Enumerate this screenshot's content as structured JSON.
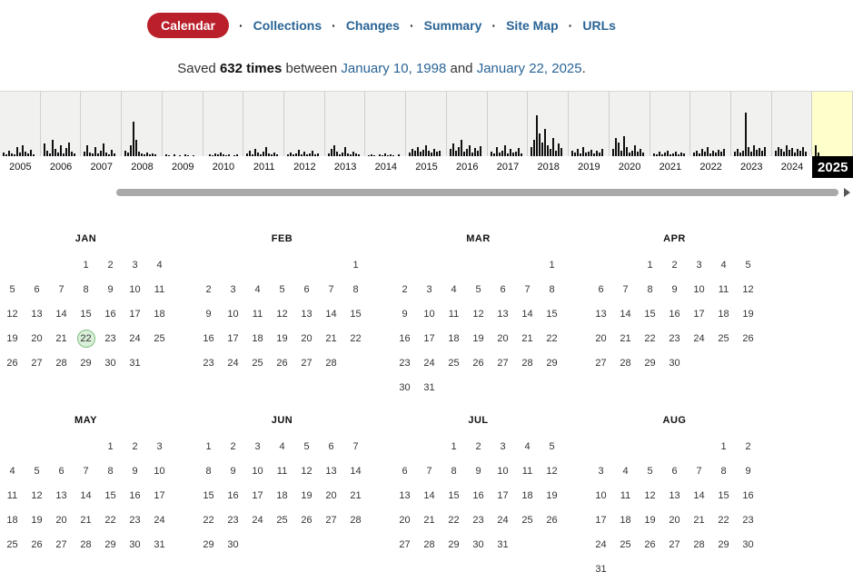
{
  "nav": {
    "separator": "·",
    "items": [
      {
        "label": "Calendar",
        "active": true
      },
      {
        "label": "Collections"
      },
      {
        "label": "Changes"
      },
      {
        "label": "Summary"
      },
      {
        "label": "Site Map"
      },
      {
        "label": "URLs"
      }
    ]
  },
  "summary": {
    "prefix": "Saved",
    "count": "632 times",
    "between": "between",
    "start_date": "January 10, 1998",
    "and": "and",
    "end_date": "January 22, 2025",
    "period": "."
  },
  "timeline": {
    "selected_year": "2025",
    "columns": [
      {
        "year": "2005",
        "bars": [
          4,
          2,
          6,
          3,
          2,
          10,
          4,
          12,
          5,
          3,
          7,
          2
        ]
      },
      {
        "year": "2006",
        "bars": [
          14,
          6,
          3,
          18,
          8,
          4,
          12,
          3,
          9,
          15,
          5,
          3
        ]
      },
      {
        "year": "2007",
        "bars": [
          5,
          12,
          4,
          3,
          10,
          3,
          6,
          14,
          4,
          2,
          7,
          3
        ]
      },
      {
        "year": "2008",
        "bars": [
          6,
          4,
          12,
          38,
          18,
          5,
          3,
          2,
          4,
          2,
          3,
          2
        ]
      },
      {
        "year": "2009",
        "bars": [
          2,
          1,
          0,
          2,
          0,
          1,
          0,
          2,
          1,
          0,
          1,
          0
        ]
      },
      {
        "year": "2010",
        "bars": [
          0,
          2,
          1,
          3,
          2,
          4,
          2,
          1,
          2,
          0,
          1,
          2
        ]
      },
      {
        "year": "2011",
        "bars": [
          3,
          6,
          2,
          8,
          4,
          2,
          5,
          10,
          3,
          2,
          4,
          2
        ]
      },
      {
        "year": "2012",
        "bars": [
          2,
          4,
          2,
          3,
          7,
          2,
          5,
          2,
          3,
          6,
          2,
          3
        ]
      },
      {
        "year": "2013",
        "bars": [
          3,
          8,
          12,
          5,
          2,
          4,
          10,
          3,
          2,
          5,
          3,
          2
        ]
      },
      {
        "year": "2014",
        "bars": [
          1,
          2,
          1,
          0,
          2,
          1,
          3,
          1,
          2,
          1,
          0,
          2
        ]
      },
      {
        "year": "2015",
        "bars": [
          4,
          8,
          6,
          10,
          5,
          7,
          12,
          6,
          4,
          8,
          5,
          6
        ]
      },
      {
        "year": "2016",
        "bars": [
          8,
          14,
          6,
          10,
          18,
          5,
          8,
          12,
          4,
          9,
          6,
          11
        ]
      },
      {
        "year": "2017",
        "bars": [
          5,
          3,
          10,
          4,
          6,
          12,
          3,
          8,
          4,
          5,
          9,
          3
        ]
      },
      {
        "year": "2018",
        "bars": [
          10,
          18,
          45,
          25,
          15,
          30,
          12,
          8,
          20,
          6,
          14,
          9
        ]
      },
      {
        "year": "2019",
        "bars": [
          6,
          4,
          8,
          3,
          10,
          4,
          5,
          7,
          3,
          6,
          4,
          8
        ]
      },
      {
        "year": "2020",
        "bars": [
          8,
          20,
          15,
          6,
          22,
          10,
          4,
          6,
          12,
          5,
          8,
          4
        ]
      },
      {
        "year": "2021",
        "bars": [
          3,
          2,
          5,
          2,
          4,
          6,
          2,
          3,
          5,
          2,
          4,
          3
        ]
      },
      {
        "year": "2022",
        "bars": [
          4,
          6,
          3,
          8,
          5,
          10,
          3,
          6,
          4,
          7,
          5,
          8
        ]
      },
      {
        "year": "2023",
        "bars": [
          5,
          8,
          4,
          6,
          48,
          10,
          5,
          12,
          7,
          9,
          6,
          10
        ]
      },
      {
        "year": "2024",
        "bars": [
          6,
          10,
          8,
          5,
          12,
          7,
          9,
          4,
          8,
          6,
          10,
          5
        ]
      },
      {
        "year": "2025",
        "selected": true,
        "bars": [
          12,
          4
        ]
      }
    ]
  },
  "calendar": {
    "highlight": {
      "month": "JAN",
      "day": "22"
    },
    "months": [
      {
        "name": "JAN",
        "weeks": [
          [
            "",
            "",
            "",
            "1",
            "2",
            "3",
            "4"
          ],
          [
            "5",
            "6",
            "7",
            "8",
            "9",
            "10",
            "11"
          ],
          [
            "12",
            "13",
            "14",
            "15",
            "16",
            "17",
            "18"
          ],
          [
            "19",
            "20",
            "21",
            "22",
            "23",
            "24",
            "25"
          ],
          [
            "26",
            "27",
            "28",
            "29",
            "30",
            "31",
            ""
          ]
        ]
      },
      {
        "name": "FEB",
        "weeks": [
          [
            "",
            "",
            "",
            "",
            "",
            "",
            "1"
          ],
          [
            "2",
            "3",
            "4",
            "5",
            "6",
            "7",
            "8"
          ],
          [
            "9",
            "10",
            "11",
            "12",
            "13",
            "14",
            "15"
          ],
          [
            "16",
            "17",
            "18",
            "19",
            "20",
            "21",
            "22"
          ],
          [
            "23",
            "24",
            "25",
            "26",
            "27",
            "28",
            ""
          ]
        ]
      },
      {
        "name": "MAR",
        "weeks": [
          [
            "",
            "",
            "",
            "",
            "",
            "",
            "1"
          ],
          [
            "2",
            "3",
            "4",
            "5",
            "6",
            "7",
            "8"
          ],
          [
            "9",
            "10",
            "11",
            "12",
            "13",
            "14",
            "15"
          ],
          [
            "16",
            "17",
            "18",
            "19",
            "20",
            "21",
            "22"
          ],
          [
            "23",
            "24",
            "25",
            "26",
            "27",
            "28",
            "29"
          ],
          [
            "30",
            "31",
            "",
            "",
            "",
            "",
            ""
          ]
        ]
      },
      {
        "name": "APR",
        "weeks": [
          [
            "",
            "",
            "1",
            "2",
            "3",
            "4",
            "5"
          ],
          [
            "6",
            "7",
            "8",
            "9",
            "10",
            "11",
            "12"
          ],
          [
            "13",
            "14",
            "15",
            "16",
            "17",
            "18",
            "19"
          ],
          [
            "20",
            "21",
            "22",
            "23",
            "24",
            "25",
            "26"
          ],
          [
            "27",
            "28",
            "29",
            "30",
            "",
            "",
            ""
          ]
        ]
      },
      {
        "name": "MAY",
        "weeks": [
          [
            "",
            "",
            "",
            "",
            "1",
            "2",
            "3"
          ],
          [
            "4",
            "5",
            "6",
            "7",
            "8",
            "9",
            "10"
          ],
          [
            "11",
            "12",
            "13",
            "14",
            "15",
            "16",
            "17"
          ],
          [
            "18",
            "19",
            "20",
            "21",
            "22",
            "23",
            "24"
          ],
          [
            "25",
            "26",
            "27",
            "28",
            "29",
            "30",
            "31"
          ]
        ]
      },
      {
        "name": "JUN",
        "weeks": [
          [
            "1",
            "2",
            "3",
            "4",
            "5",
            "6",
            "7"
          ],
          [
            "8",
            "9",
            "10",
            "11",
            "12",
            "13",
            "14"
          ],
          [
            "15",
            "16",
            "17",
            "18",
            "19",
            "20",
            "21"
          ],
          [
            "22",
            "23",
            "24",
            "25",
            "26",
            "27",
            "28"
          ],
          [
            "29",
            "30",
            "",
            "",
            "",
            "",
            ""
          ]
        ]
      },
      {
        "name": "JUL",
        "weeks": [
          [
            "",
            "",
            "1",
            "2",
            "3",
            "4",
            "5"
          ],
          [
            "6",
            "7",
            "8",
            "9",
            "10",
            "11",
            "12"
          ],
          [
            "13",
            "14",
            "15",
            "16",
            "17",
            "18",
            "19"
          ],
          [
            "20",
            "21",
            "22",
            "23",
            "24",
            "25",
            "26"
          ],
          [
            "27",
            "28",
            "29",
            "30",
            "31",
            "",
            ""
          ]
        ]
      },
      {
        "name": "AUG",
        "weeks": [
          [
            "",
            "",
            "",
            "",
            "",
            "1",
            "2"
          ],
          [
            "3",
            "4",
            "5",
            "6",
            "7",
            "8",
            "9"
          ],
          [
            "10",
            "11",
            "12",
            "13",
            "14",
            "15",
            "16"
          ],
          [
            "17",
            "18",
            "19",
            "20",
            "21",
            "22",
            "23"
          ],
          [
            "24",
            "25",
            "26",
            "27",
            "28",
            "29",
            "30"
          ],
          [
            "31",
            "",
            "",
            "",
            "",
            "",
            ""
          ]
        ]
      }
    ]
  },
  "colors": {
    "accent_red": "#b9202b",
    "link_blue": "#2a6496",
    "selected_year_bg": "#ffffcc",
    "highlight_day_fill": "#d9efd9",
    "highlight_day_border": "#7fbf7f"
  }
}
